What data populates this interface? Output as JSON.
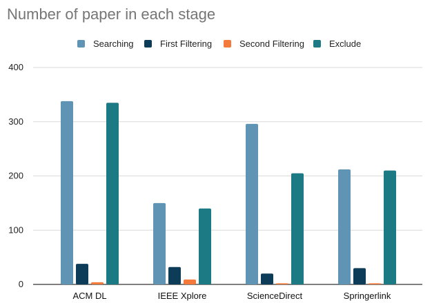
{
  "chart_data": {
    "type": "bar",
    "title": "Number of paper in each stage",
    "categories": [
      "ACM DL",
      "IEEE Xplore",
      "ScienceDirect",
      "Springerlink"
    ],
    "series": [
      {
        "name": "Searching",
        "color": "#5f94b5",
        "values": [
          338,
          150,
          296,
          212
        ]
      },
      {
        "name": "First Filtering",
        "color": "#0d3c59",
        "values": [
          38,
          32,
          20,
          30
        ]
      },
      {
        "name": "Second Filtering",
        "color": "#f47a3b",
        "values": [
          4,
          9,
          2,
          2
        ]
      },
      {
        "name": "Exclude",
        "color": "#1c7a85",
        "values": [
          335,
          140,
          205,
          210
        ]
      }
    ],
    "yticks": [
      "0",
      "100",
      "200",
      "300",
      "400"
    ],
    "ylim": [
      0,
      400
    ],
    "grid": true,
    "legend_position": "top",
    "xlabel": "",
    "ylabel": ""
  }
}
